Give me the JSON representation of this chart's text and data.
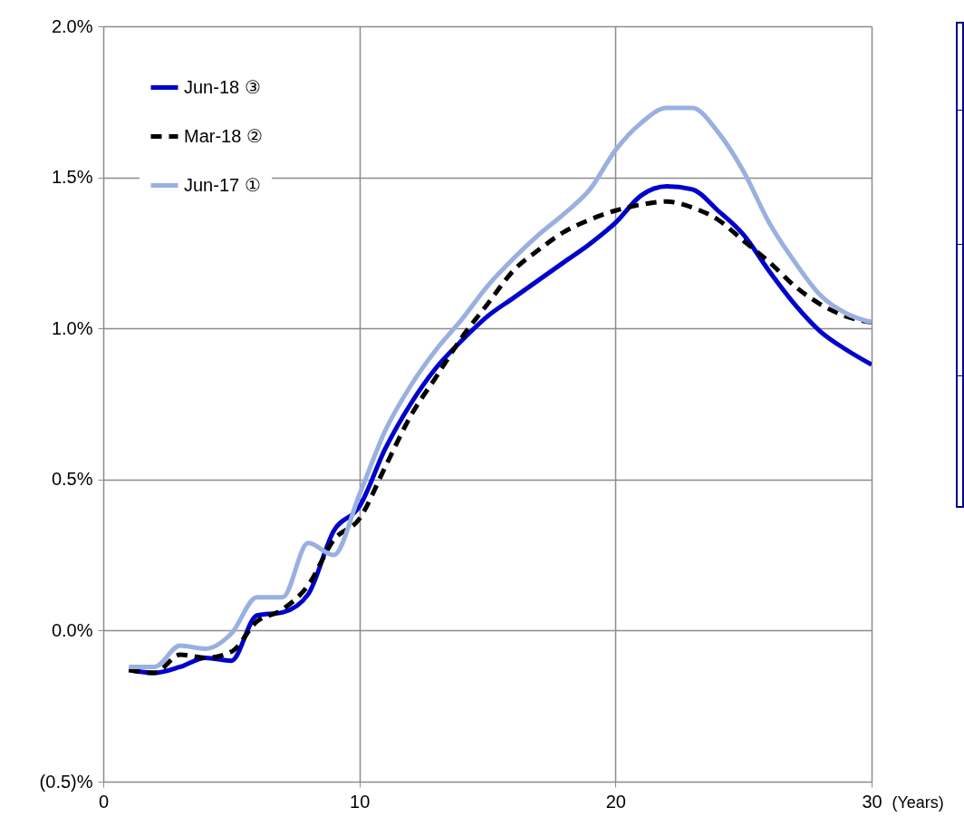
{
  "chart_data": {
    "type": "line",
    "xlabel": "(Years)",
    "x": [
      1,
      2,
      3,
      4,
      5,
      6,
      7,
      8,
      9,
      10,
      11,
      12,
      13,
      14,
      15,
      16,
      17,
      18,
      19,
      20,
      21,
      22,
      23,
      24,
      25,
      26,
      27,
      28,
      29,
      30
    ],
    "series": [
      {
        "name": "Jun-18 ③",
        "color": "#0000cc",
        "line_style": "solid",
        "values": [
          -0.13,
          -0.14,
          -0.12,
          -0.09,
          -0.1,
          0.05,
          0.06,
          0.12,
          0.33,
          0.41,
          0.6,
          0.75,
          0.87,
          0.96,
          1.04,
          1.1,
          1.16,
          1.22,
          1.28,
          1.35,
          1.44,
          1.47,
          1.46,
          1.39,
          1.31,
          1.19,
          1.08,
          0.99,
          0.93,
          0.88
        ]
      },
      {
        "name": "Mar-18 ②",
        "color": "#000000",
        "line_style": "dashed",
        "values": [
          -0.13,
          -0.14,
          -0.08,
          -0.09,
          -0.07,
          0.03,
          0.07,
          0.15,
          0.3,
          0.37,
          0.54,
          0.71,
          0.84,
          0.97,
          1.08,
          1.19,
          1.26,
          1.32,
          1.36,
          1.39,
          1.41,
          1.42,
          1.4,
          1.36,
          1.29,
          1.22,
          1.14,
          1.08,
          1.04,
          1.02
        ]
      },
      {
        "name": "Jun-17 ①",
        "color": "#99b0e0",
        "line_style": "solid",
        "values": [
          -0.12,
          -0.12,
          -0.05,
          -0.06,
          -0.01,
          0.11,
          0.11,
          0.29,
          0.25,
          0.45,
          0.66,
          0.81,
          0.93,
          1.03,
          1.14,
          1.23,
          1.31,
          1.38,
          1.46,
          1.59,
          1.68,
          1.73,
          1.73,
          1.65,
          1.52,
          1.35,
          1.22,
          1.11,
          1.05,
          1.02
        ]
      }
    ],
    "xlim": [
      0,
      30
    ],
    "xticks": [
      0,
      10,
      20,
      30
    ],
    "ylim": [
      -0.5,
      2.0
    ],
    "yticks": [
      {
        "value": -0.5,
        "label": "(0.5)%"
      },
      {
        "value": 0,
        "label": "0.0%"
      },
      {
        "value": 0.5,
        "label": "0.5%"
      },
      {
        "value": 1.0,
        "label": "1.0%"
      },
      {
        "value": 1.5,
        "label": "1.5%"
      },
      {
        "value": 2.0,
        "label": "2.0%"
      }
    ],
    "grid": true,
    "legend": "top left",
    "marker": "none"
  }
}
